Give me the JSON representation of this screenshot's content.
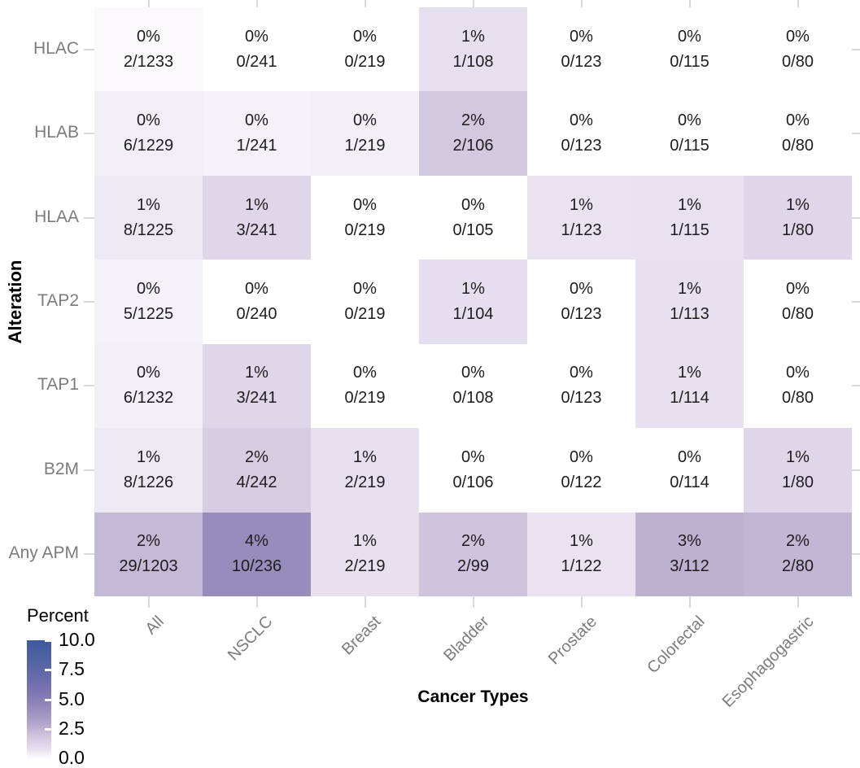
{
  "chart_data": {
    "type": "heatmap",
    "title": "",
    "xlabel": "Cancer Types",
    "ylabel": "Alteration",
    "columns": [
      "All",
      "NSCLC",
      "Breast",
      "Bladder",
      "Prostate",
      "Colorectal",
      "Esophagogastric"
    ],
    "rows": [
      "HLAC",
      "HLAB",
      "HLAA",
      "TAP2",
      "TAP1",
      "B2M",
      "Any APM"
    ],
    "cells": [
      [
        {
          "pct": "0%",
          "frac": "2/1233",
          "n": 2,
          "d": 1233
        },
        {
          "pct": "0%",
          "frac": "0/241",
          "n": 0,
          "d": 241
        },
        {
          "pct": "0%",
          "frac": "0/219",
          "n": 0,
          "d": 219
        },
        {
          "pct": "1%",
          "frac": "1/108",
          "n": 1,
          "d": 108
        },
        {
          "pct": "0%",
          "frac": "0/123",
          "n": 0,
          "d": 123
        },
        {
          "pct": "0%",
          "frac": "0/115",
          "n": 0,
          "d": 115
        },
        {
          "pct": "0%",
          "frac": "0/80",
          "n": 0,
          "d": 80
        }
      ],
      [
        {
          "pct": "0%",
          "frac": "6/1229",
          "n": 6,
          "d": 1229
        },
        {
          "pct": "0%",
          "frac": "1/241",
          "n": 1,
          "d": 241
        },
        {
          "pct": "0%",
          "frac": "1/219",
          "n": 1,
          "d": 219
        },
        {
          "pct": "2%",
          "frac": "2/106",
          "n": 2,
          "d": 106
        },
        {
          "pct": "0%",
          "frac": "0/123",
          "n": 0,
          "d": 123
        },
        {
          "pct": "0%",
          "frac": "0/115",
          "n": 0,
          "d": 115
        },
        {
          "pct": "0%",
          "frac": "0/80",
          "n": 0,
          "d": 80
        }
      ],
      [
        {
          "pct": "1%",
          "frac": "8/1225",
          "n": 8,
          "d": 1225
        },
        {
          "pct": "1%",
          "frac": "3/241",
          "n": 3,
          "d": 241
        },
        {
          "pct": "0%",
          "frac": "0/219",
          "n": 0,
          "d": 219
        },
        {
          "pct": "0%",
          "frac": "0/105",
          "n": 0,
          "d": 105
        },
        {
          "pct": "1%",
          "frac": "1/123",
          "n": 1,
          "d": 123
        },
        {
          "pct": "1%",
          "frac": "1/115",
          "n": 1,
          "d": 115
        },
        {
          "pct": "1%",
          "frac": "1/80",
          "n": 1,
          "d": 80
        }
      ],
      [
        {
          "pct": "0%",
          "frac": "5/1225",
          "n": 5,
          "d": 1225
        },
        {
          "pct": "0%",
          "frac": "0/240",
          "n": 0,
          "d": 240
        },
        {
          "pct": "0%",
          "frac": "0/219",
          "n": 0,
          "d": 219
        },
        {
          "pct": "1%",
          "frac": "1/104",
          "n": 1,
          "d": 104
        },
        {
          "pct": "0%",
          "frac": "0/123",
          "n": 0,
          "d": 123
        },
        {
          "pct": "1%",
          "frac": "1/113",
          "n": 1,
          "d": 113
        },
        {
          "pct": "0%",
          "frac": "0/80",
          "n": 0,
          "d": 80
        }
      ],
      [
        {
          "pct": "0%",
          "frac": "6/1232",
          "n": 6,
          "d": 1232
        },
        {
          "pct": "1%",
          "frac": "3/241",
          "n": 3,
          "d": 241
        },
        {
          "pct": "0%",
          "frac": "0/219",
          "n": 0,
          "d": 219
        },
        {
          "pct": "0%",
          "frac": "0/108",
          "n": 0,
          "d": 108
        },
        {
          "pct": "0%",
          "frac": "0/123",
          "n": 0,
          "d": 123
        },
        {
          "pct": "1%",
          "frac": "1/114",
          "n": 1,
          "d": 114
        },
        {
          "pct": "0%",
          "frac": "0/80",
          "n": 0,
          "d": 80
        }
      ],
      [
        {
          "pct": "1%",
          "frac": "8/1226",
          "n": 8,
          "d": 1226
        },
        {
          "pct": "2%",
          "frac": "4/242",
          "n": 4,
          "d": 242
        },
        {
          "pct": "1%",
          "frac": "2/219",
          "n": 2,
          "d": 219
        },
        {
          "pct": "0%",
          "frac": "0/106",
          "n": 0,
          "d": 106
        },
        {
          "pct": "0%",
          "frac": "0/122",
          "n": 0,
          "d": 122
        },
        {
          "pct": "0%",
          "frac": "0/114",
          "n": 0,
          "d": 114
        },
        {
          "pct": "1%",
          "frac": "1/80",
          "n": 1,
          "d": 80
        }
      ],
      [
        {
          "pct": "2%",
          "frac": "29/1203",
          "n": 29,
          "d": 1203
        },
        {
          "pct": "4%",
          "frac": "10/236",
          "n": 10,
          "d": 236
        },
        {
          "pct": "1%",
          "frac": "2/219",
          "n": 2,
          "d": 219
        },
        {
          "pct": "2%",
          "frac": "2/99",
          "n": 2,
          "d": 99
        },
        {
          "pct": "1%",
          "frac": "1/122",
          "n": 1,
          "d": 122
        },
        {
          "pct": "3%",
          "frac": "3/112",
          "n": 3,
          "d": 112
        },
        {
          "pct": "2%",
          "frac": "2/80",
          "n": 2,
          "d": 80
        }
      ]
    ],
    "legend": {
      "title": "Percent",
      "ticks": [
        "10.0",
        "7.5",
        "5.0",
        "2.5",
        "0.0"
      ],
      "tick_values": [
        10.0,
        7.5,
        5.0,
        2.5,
        0.0
      ],
      "min": 0,
      "max": 10,
      "position": "bottom-left"
    },
    "colorscale": {
      "anchors": [
        {
          "p": 0,
          "c": "#ffffff"
        },
        {
          "p": 1,
          "c": "#e4dded"
        },
        {
          "p": 2,
          "c": "#d0c5de"
        },
        {
          "p": 3,
          "c": "#b2a7cb"
        },
        {
          "p": 4.5,
          "c": "#9187ba"
        },
        {
          "p": 6,
          "c": "#7772ae"
        },
        {
          "p": 8,
          "c": "#5565a5"
        },
        {
          "p": 10,
          "c": "#3d5a9e"
        }
      ]
    },
    "colors": {
      "axis_tick": "#d9d9d9",
      "axis_text": "#7c7c7c",
      "cell_text": "#1d1d1d",
      "title_text": "#000000",
      "background": "#ffffff"
    },
    "layout": {
      "grid_lines": false,
      "x_tick_rotation_deg": 45,
      "ticks_mirrored_top_right": true
    }
  }
}
